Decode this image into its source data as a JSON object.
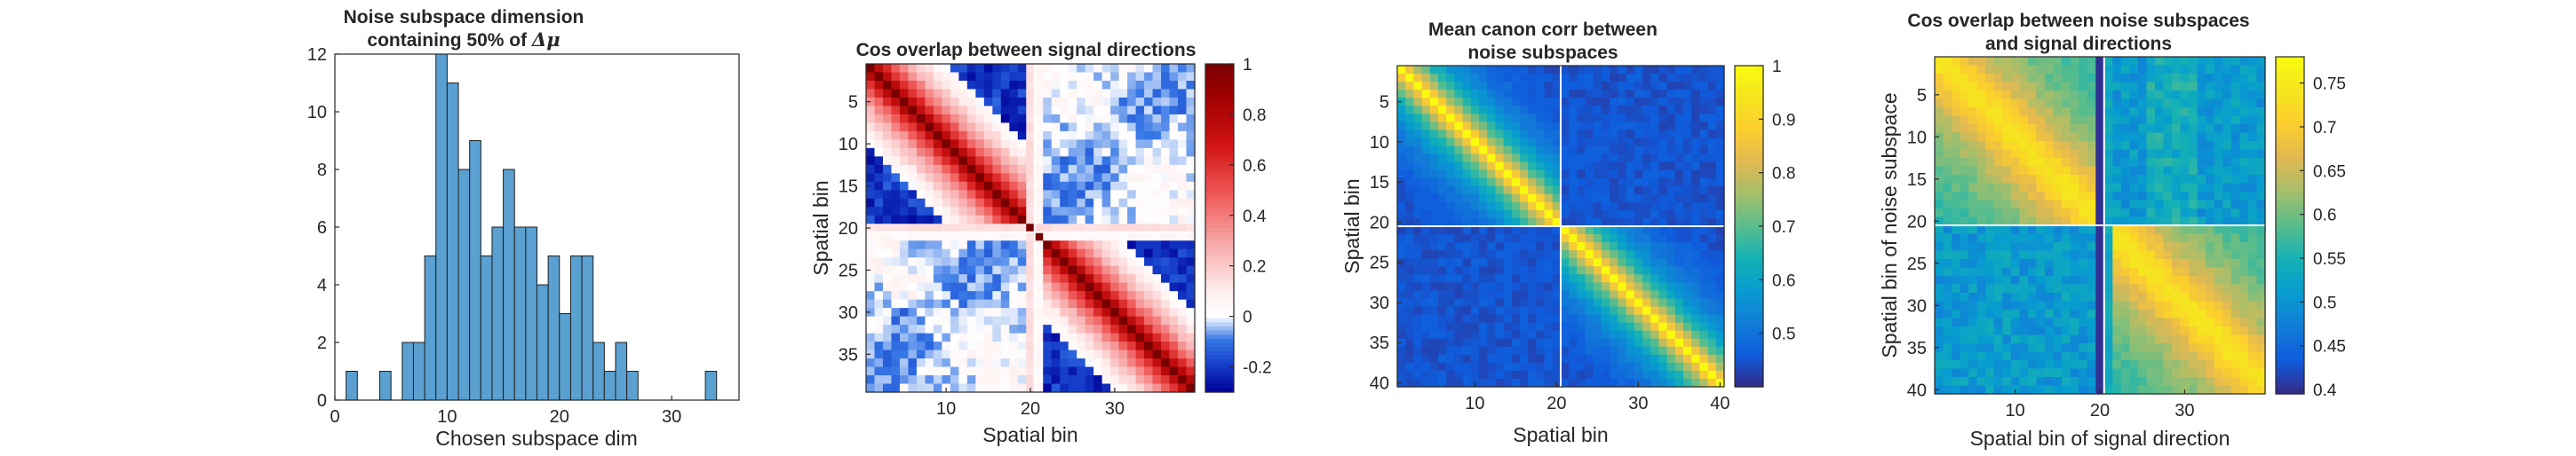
{
  "colors": {
    "hist_fill": "#5aa0d0",
    "hist_edge": "#1f1f1f",
    "axis": "#262626",
    "divider": "#ffffff"
  },
  "chart_data": [
    {
      "type": "bar",
      "title_line1": "Noise subspace dimension",
      "title_line2_prefix": "containing 50% of ",
      "title_symbol": "Δμ",
      "xlabel": "Chosen subspace dim",
      "ylabel": "",
      "xlim": [
        0,
        36
      ],
      "ylim": [
        0,
        12
      ],
      "xticks": [
        "0",
        "10",
        "20",
        "30"
      ],
      "yticks": [
        "0",
        "2",
        "4",
        "6",
        "8",
        "10",
        "12"
      ],
      "bin_width": 1,
      "bins": [
        {
          "x": 1,
          "count": 1
        },
        {
          "x": 4,
          "count": 1
        },
        {
          "x": 6,
          "count": 2
        },
        {
          "x": 7,
          "count": 2
        },
        {
          "x": 8,
          "count": 5
        },
        {
          "x": 9,
          "count": 12
        },
        {
          "x": 10,
          "count": 11
        },
        {
          "x": 11,
          "count": 8
        },
        {
          "x": 12,
          "count": 9
        },
        {
          "x": 13,
          "count": 5
        },
        {
          "x": 14,
          "count": 6
        },
        {
          "x": 15,
          "count": 8
        },
        {
          "x": 16,
          "count": 6
        },
        {
          "x": 17,
          "count": 6
        },
        {
          "x": 18,
          "count": 4
        },
        {
          "x": 19,
          "count": 5
        },
        {
          "x": 20,
          "count": 3
        },
        {
          "x": 21,
          "count": 5
        },
        {
          "x": 22,
          "count": 5
        },
        {
          "x": 23,
          "count": 2
        },
        {
          "x": 24,
          "count": 1
        },
        {
          "x": 25,
          "count": 2
        },
        {
          "x": 26,
          "count": 1
        },
        {
          "x": 33,
          "count": 1
        }
      ]
    },
    {
      "type": "heatmap",
      "title_line1": "Cos overlap between signal directions",
      "title_line2": "",
      "xlabel": "Spatial bin",
      "ylabel": "Spatial bin",
      "n": 39,
      "break_at": 20,
      "xticks": [
        "10",
        "20",
        "30"
      ],
      "yticks": [
        "5",
        "10",
        "15",
        "20",
        "25",
        "30",
        "35"
      ],
      "colormap": "red-white-blue",
      "clim": [
        -0.3,
        1
      ],
      "colorbar_ticks": [
        "-0.2",
        "0",
        "0.2",
        "0.4",
        "0.6",
        "0.8",
        "1"
      ]
    },
    {
      "type": "heatmap",
      "title_line1": "Mean canon corr between",
      "title_line2": "noise subspaces",
      "xlabel": "Spatial bin",
      "ylabel": "Spatial bin",
      "n": 40,
      "break_at": 20,
      "xticks": [
        "10",
        "20",
        "30",
        "40"
      ],
      "yticks": [
        "5",
        "10",
        "15",
        "20",
        "25",
        "30",
        "35",
        "40"
      ],
      "colormap": "parula",
      "clim": [
        0.4,
        1
      ],
      "colorbar_ticks": [
        "0.5",
        "0.6",
        "0.7",
        "0.8",
        "0.9",
        "1"
      ]
    },
    {
      "type": "heatmap",
      "title_line1": "Cos overlap between noise subspaces",
      "title_line2": "and signal directions",
      "xlabel": "Spatial bin of signal direction",
      "ylabel": "Spatial bin of noise subspace",
      "n_rows": 40,
      "n_cols": 39,
      "break_at": 20,
      "xticks": [
        "10",
        "20",
        "30"
      ],
      "yticks": [
        "5",
        "10",
        "15",
        "20",
        "25",
        "30",
        "35",
        "40"
      ],
      "colormap": "parula",
      "clim": [
        0.395,
        0.78
      ],
      "colorbar_ticks": [
        "0.4",
        "0.45",
        "0.5",
        "0.55",
        "0.6",
        "0.65",
        "0.7",
        "0.75"
      ]
    }
  ]
}
